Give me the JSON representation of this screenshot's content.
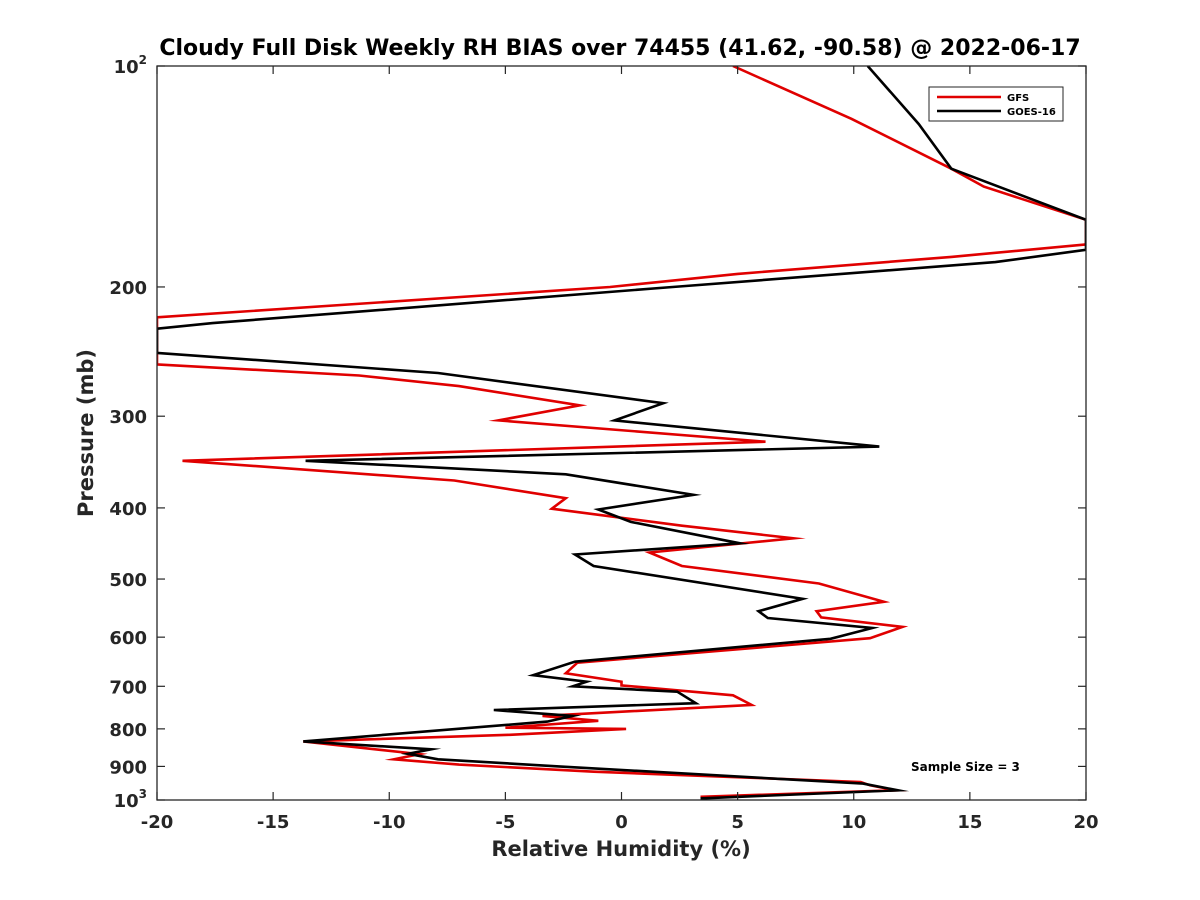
{
  "chart_data": {
    "type": "line",
    "title": "Cloudy Full Disk Weekly RH BIAS over 74455 (41.62, -90.58) @ 2022-06-17",
    "xlabel": "Relative Humidity (%)",
    "ylabel": "Pressure (mb)",
    "xlim": [
      -20,
      20
    ],
    "ylim": [
      100,
      1000
    ],
    "y_scale": "log",
    "y_reversed": true,
    "grid": false,
    "legend_position": "top-right",
    "x_ticks": [
      -20,
      -15,
      -10,
      -5,
      0,
      5,
      10,
      15,
      20
    ],
    "x_tick_labels": [
      "-20",
      "-15",
      "-10",
      "-5",
      "0",
      "5",
      "10",
      "15",
      "20"
    ],
    "y_ticks": [
      {
        "value": 100,
        "base": "10",
        "exp": "2",
        "label": ""
      },
      {
        "value": 200,
        "label": "200"
      },
      {
        "value": 300,
        "label": "300"
      },
      {
        "value": 400,
        "label": "400"
      },
      {
        "value": 500,
        "label": "500"
      },
      {
        "value": 600,
        "label": "600"
      },
      {
        "value": 700,
        "label": "700"
      },
      {
        "value": 800,
        "label": "800"
      },
      {
        "value": 900,
        "label": "900"
      },
      {
        "value": 1000,
        "base": "10",
        "exp": "3",
        "label": ""
      }
    ],
    "annotation": "Sample Size = 3",
    "series": [
      {
        "name": "GFS",
        "color": "#e00000",
        "points": [
          [
            4.8,
            100
          ],
          [
            9.9,
            118
          ],
          [
            14.2,
            138
          ],
          [
            15.6,
            146
          ],
          [
            20,
            162
          ],
          [
            20,
            175
          ],
          [
            14.2,
            182
          ],
          [
            5,
            192
          ],
          [
            -0.5,
            200
          ],
          [
            -20,
            220
          ],
          [
            -20,
            255
          ],
          [
            -11.3,
            264
          ],
          [
            -7,
            273
          ],
          [
            -1.8,
            290
          ],
          [
            -5.3,
            304
          ],
          [
            6.2,
            325
          ],
          [
            -18.9,
            345
          ],
          [
            -7.2,
            367
          ],
          [
            -2.4,
            388
          ],
          [
            -3,
            401
          ],
          [
            2.6,
            423
          ],
          [
            7.4,
            440
          ],
          [
            1.2,
            460
          ],
          [
            2.6,
            480
          ],
          [
            8.5,
            507
          ],
          [
            11.3,
            537
          ],
          [
            8.4,
            553
          ],
          [
            8.6,
            564
          ],
          [
            12.1,
            581
          ],
          [
            10.7,
            602
          ],
          [
            -1.9,
            650
          ],
          [
            -2.4,
            672
          ],
          [
            0,
            690
          ],
          [
            0,
            698
          ],
          [
            4.8,
            720
          ],
          [
            5.6,
            742
          ],
          [
            -3.4,
            768
          ],
          [
            -1,
            780
          ],
          [
            -5,
            797
          ],
          [
            0.2,
            800
          ],
          [
            -4.8,
            815
          ],
          [
            -13.7,
            832
          ],
          [
            -8.7,
            866
          ],
          [
            -9.8,
            880
          ],
          [
            -7,
            895
          ],
          [
            -1.2,
            915
          ],
          [
            10.3,
            945
          ],
          [
            10.7,
            955
          ],
          [
            11.8,
            970
          ],
          [
            3.4,
            990
          ]
        ]
      },
      {
        "name": "GOES-16",
        "color": "#000000",
        "points": [
          [
            10.6,
            100
          ],
          [
            12.8,
            120
          ],
          [
            14.2,
            138
          ],
          [
            20,
            162
          ],
          [
            20,
            178
          ],
          [
            16.1,
            185
          ],
          [
            2.2,
            200
          ],
          [
            -17.6,
            224
          ],
          [
            -20,
            228
          ],
          [
            -20,
            246
          ],
          [
            -7.9,
            262
          ],
          [
            1.8,
            288
          ],
          [
            -0.3,
            304
          ],
          [
            11.1,
            330
          ],
          [
            -13.6,
            345
          ],
          [
            -2.4,
            360
          ],
          [
            3.1,
            384
          ],
          [
            -1,
            402
          ],
          [
            0.4,
            418
          ],
          [
            5.1,
            447
          ],
          [
            -2,
            463
          ],
          [
            -1.2,
            480
          ],
          [
            7.8,
            532
          ],
          [
            5.9,
            553
          ],
          [
            6.3,
            565
          ],
          [
            10.8,
            583
          ],
          [
            9,
            603
          ],
          [
            -2,
            648
          ],
          [
            -3.8,
            676
          ],
          [
            -1.5,
            690
          ],
          [
            -2.1,
            700
          ],
          [
            2.4,
            712
          ],
          [
            3.2,
            738
          ],
          [
            -5.5,
            754
          ],
          [
            -2.1,
            768
          ],
          [
            -3.2,
            782
          ],
          [
            -13.7,
            832
          ],
          [
            -8.2,
            853
          ],
          [
            -9.2,
            865
          ],
          [
            -7.9,
            880
          ],
          [
            -2.7,
            900
          ],
          [
            10.4,
            950
          ],
          [
            11.9,
            970
          ],
          [
            3.4,
            995
          ]
        ]
      }
    ]
  }
}
